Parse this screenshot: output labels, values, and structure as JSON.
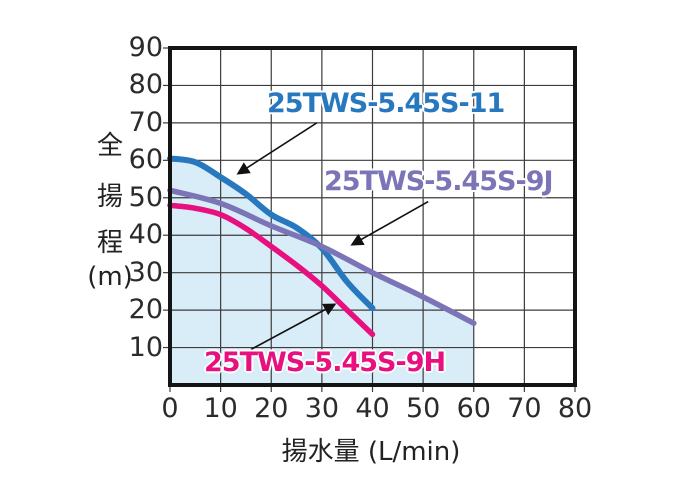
{
  "chart_data": {
    "type": "line",
    "xlabel": "揚水量 (L/min)",
    "ylabel": "全揚程(m)",
    "ylabel_chars": [
      "全",
      "揚",
      "程",
      "(m)"
    ],
    "xlim": [
      0,
      80
    ],
    "ylim": [
      0,
      90
    ],
    "x_ticks": [
      0,
      10,
      20,
      30,
      40,
      50,
      60,
      70,
      80
    ],
    "y_ticks": [
      90,
      80,
      70,
      60,
      50,
      40,
      30,
      20,
      10
    ],
    "grid": true,
    "grid_color": "#3c3c3c",
    "border_color": "#141414",
    "series": [
      {
        "name": "25TWS-5.45S-11",
        "color": "#2878c0",
        "stroke_width": 6,
        "points": [
          [
            0,
            60.5
          ],
          [
            5,
            59.5
          ],
          [
            10,
            55.5
          ],
          [
            15,
            51
          ],
          [
            20,
            45.5
          ],
          [
            25,
            42
          ],
          [
            30,
            36.5
          ],
          [
            35,
            27.5
          ],
          [
            40,
            20.5
          ]
        ]
      },
      {
        "name": "25TWS-5.45S-9J",
        "color": "#7b75b8",
        "stroke_width": 5.5,
        "points": [
          [
            0,
            52
          ],
          [
            10,
            48.5
          ],
          [
            20,
            42.5
          ],
          [
            30,
            37
          ],
          [
            40,
            30
          ],
          [
            50,
            23.5
          ],
          [
            60,
            16.5
          ]
        ]
      },
      {
        "name": "25TWS-5.45S-9H",
        "color": "#e8107e",
        "stroke_width": 5.5,
        "points": [
          [
            0,
            48
          ],
          [
            5,
            47.2
          ],
          [
            10,
            45.5
          ],
          [
            15,
            41.8
          ],
          [
            20,
            37
          ],
          [
            25,
            32
          ],
          [
            30,
            26.5
          ],
          [
            35,
            20
          ],
          [
            40,
            13.5
          ]
        ]
      }
    ],
    "operating_region": {
      "fill": "#d9edf8",
      "x_max": 60,
      "upper_boundary": [
        [
          0,
          60.5
        ],
        [
          5,
          59.5
        ],
        [
          10,
          55.5
        ],
        [
          15,
          51
        ],
        [
          20,
          45.5
        ],
        [
          25,
          42
        ],
        [
          28,
          39.3
        ],
        [
          30,
          37.3
        ],
        [
          40,
          30
        ],
        [
          50,
          23.5
        ],
        [
          60,
          16.5
        ]
      ]
    },
    "annotations": [
      {
        "series": "25TWS-5.45S-11",
        "arrow_from": [
          29,
          70
        ],
        "arrow_to": [
          13.5,
          56.5
        ]
      },
      {
        "series": "25TWS-5.45S-9J",
        "arrow_from": [
          51,
          49
        ],
        "arrow_to": [
          36,
          37.5
        ]
      },
      {
        "series": "25TWS-5.45S-9H",
        "arrow_from": [
          16,
          9.5
        ],
        "arrow_to": [
          32.5,
          21.5
        ]
      }
    ]
  }
}
